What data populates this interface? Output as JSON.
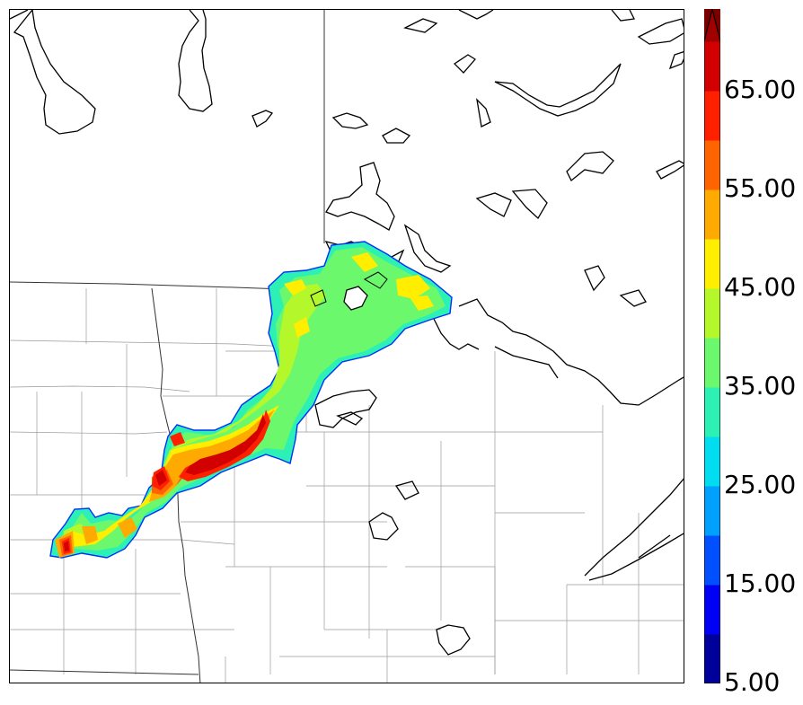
{
  "map": {
    "description_free": true
  },
  "colorbar": {
    "labels": [
      "65.00",
      "55.00",
      "45.00",
      "35.00",
      "25.00",
      "15.00",
      "5.00"
    ],
    "colors": [
      "#00009b",
      "#0000f5",
      "#0050ff",
      "#00a0ff",
      "#00dcf0",
      "#2cf0b4",
      "#6cf86c",
      "#b4f82c",
      "#ffee00",
      "#ffaa00",
      "#ff6400",
      "#ff2000",
      "#d20000",
      "#a00000",
      "#7a0000"
    ],
    "extend": "max"
  }
}
